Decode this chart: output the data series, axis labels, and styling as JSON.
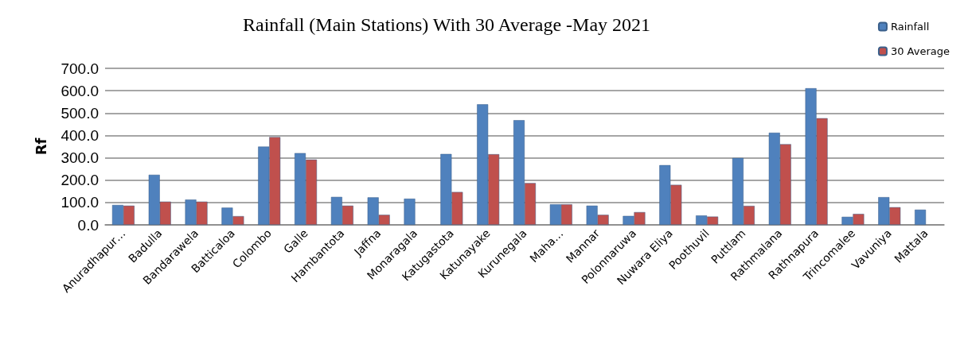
{
  "chart_data": {
    "type": "bar",
    "title": "Rainfall (Main Stations) With 30 Average -May 2021",
    "ylabel": "Rf",
    "categories": [
      "Anuradhapur…",
      "Badulla",
      "Bandarawela",
      "Batticaloa",
      "Colombo",
      "Galle",
      "Hambantota",
      "Jaffna",
      "Monaragala",
      "Katugastota",
      "Katunayake",
      "Kurunegala",
      "Maha…",
      "Mannar",
      "Polonnaruwa",
      "Nuwara Eliya",
      "Poothuvil",
      "Puttlam",
      "Rathmalana",
      "Rathnapura",
      "Trincomalee",
      "Vavuniya",
      "Mattala"
    ],
    "series": [
      {
        "name": "Rainfall",
        "color": "#4f81bd",
        "values": [
          89,
          224,
          113,
          77,
          350,
          321,
          125,
          123,
          117,
          317,
          539,
          468,
          92,
          86,
          40,
          267,
          42,
          299,
          412,
          611,
          36,
          124,
          68
        ]
      },
      {
        "name": "30 Average",
        "color": "#c0504d",
        "values": [
          86,
          104,
          104,
          39,
          393,
          292,
          86,
          45,
          null,
          147,
          316,
          187,
          92,
          45,
          57,
          179,
          37,
          85,
          361,
          477,
          49,
          79,
          null
        ]
      }
    ],
    "ylim": [
      0,
      700
    ],
    "yticks": [
      {
        "value": 0,
        "label": "0.0"
      },
      {
        "value": 100,
        "label": "100.0"
      },
      {
        "value": 200,
        "label": "200.0"
      },
      {
        "value": 300,
        "label": "300.0"
      },
      {
        "value": 400,
        "label": "400.0"
      },
      {
        "value": 500,
        "label": "500.0"
      },
      {
        "value": 600,
        "label": "600.0"
      },
      {
        "value": 700,
        "label": "700.0"
      }
    ],
    "grid": "y",
    "legend": "top right"
  }
}
